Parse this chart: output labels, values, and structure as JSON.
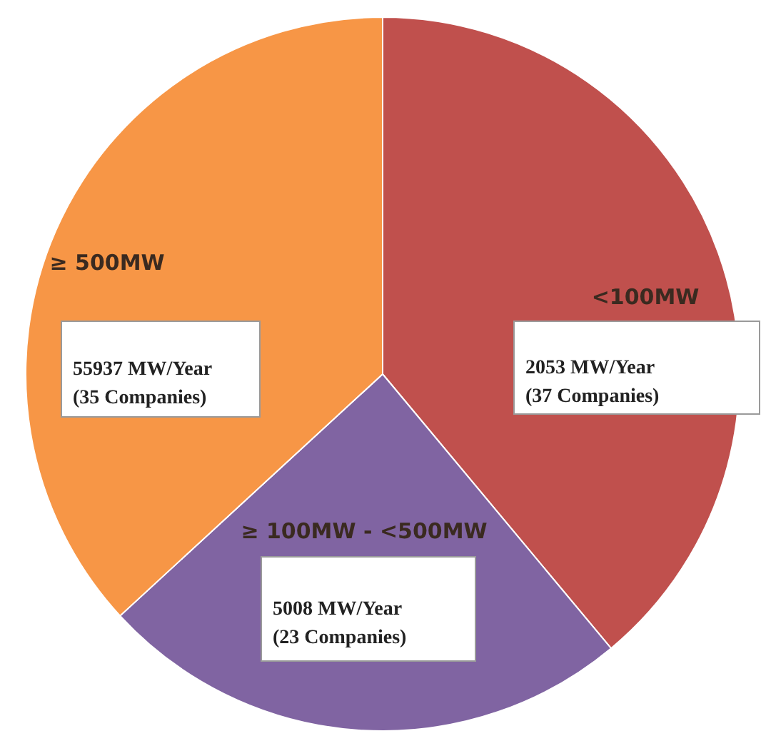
{
  "chart_data": {
    "type": "pie",
    "categories": [
      "<100MW",
      "≥ 100MW - <500MW",
      "≥ 500MW"
    ],
    "values": [
      37,
      23,
      35
    ],
    "colors": [
      "#c0504d",
      "#8064a2",
      "#f79646"
    ],
    "value_labels": [
      "2053 MW/Year\n(37 Companies)",
      "5008 MW/Year\n(23 Companies)",
      "55937 MW/Year\n(35 Companies)"
    ]
  }
}
